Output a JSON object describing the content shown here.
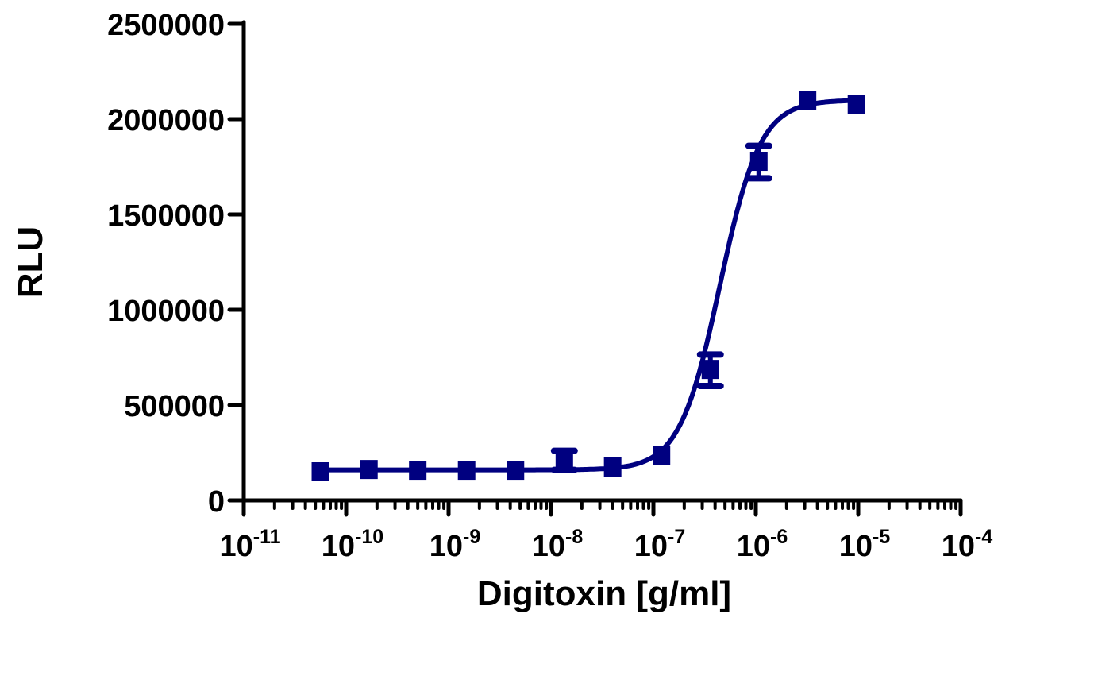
{
  "chart_data": {
    "type": "scatter",
    "title": "",
    "xlabel": "Digitoxin [g/ml]",
    "ylabel": "RLU",
    "xscale": "log",
    "xlim": [
      1e-11,
      0.0001
    ],
    "ylim": [
      0,
      2500000
    ],
    "x_ticks": [
      {
        "base": "10",
        "exp": "-11"
      },
      {
        "base": "10",
        "exp": "-10"
      },
      {
        "base": "10",
        "exp": "-9"
      },
      {
        "base": "10",
        "exp": "-8"
      },
      {
        "base": "10",
        "exp": "-7"
      },
      {
        "base": "10",
        "exp": "-6"
      },
      {
        "base": "10",
        "exp": "-5"
      },
      {
        "base": "10",
        "exp": "-4"
      }
    ],
    "y_ticks": [
      "0",
      "500000",
      "1000000",
      "1500000",
      "2000000",
      "2500000"
    ],
    "y_tick_values": [
      0,
      500000,
      1000000,
      1500000,
      2000000,
      2500000
    ],
    "grid": false,
    "legend": null,
    "series": [
      {
        "name": "Digitoxin",
        "color": "#000080",
        "marker": "square",
        "fit": "sigmoidal dose-response (4PL)",
        "x": [
          5.6e-11,
          1.67e-10,
          5e-10,
          1.5e-09,
          4.5e-09,
          1.35e-08,
          4e-08,
          1.2e-07,
          3.6e-07,
          1.07e-06,
          3.2e-06,
          9.6e-06
        ],
        "y": [
          150000,
          162000,
          158000,
          158000,
          158000,
          208000,
          175000,
          237000,
          687000,
          1779000,
          2096000,
          2075000
        ],
        "error_low": [
          null,
          null,
          null,
          null,
          null,
          160000,
          null,
          null,
          600000,
          1690000,
          null,
          null
        ],
        "error_high": [
          null,
          null,
          null,
          null,
          null,
          260000,
          null,
          null,
          765000,
          1860000,
          null,
          null
        ]
      }
    ],
    "fit_params": {
      "bottom": 160000,
      "top": 2100000,
      "log_ec50": -6.35,
      "hill": 2.2
    }
  }
}
